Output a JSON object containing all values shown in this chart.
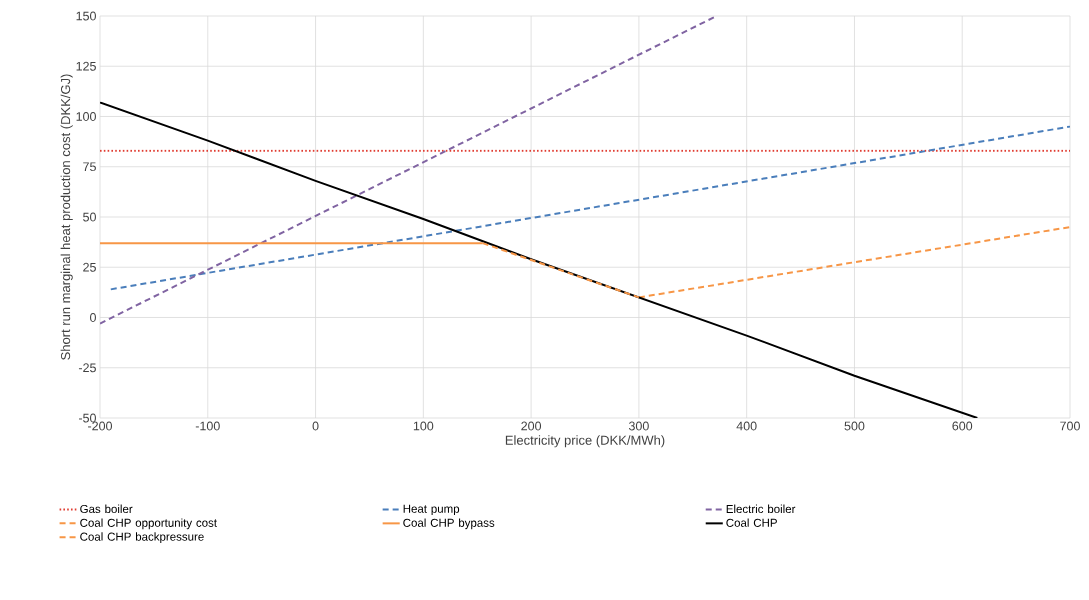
{
  "chart_data": {
    "type": "line",
    "xlabel": "Electricity price (DKK/MWh)",
    "ylabel": "Short run marginal heat production cost (DKK/GJ)",
    "xlim": [
      -200,
      700
    ],
    "ylim": [
      -50,
      150
    ],
    "xticks": [
      -200,
      -100,
      0,
      100,
      200,
      300,
      400,
      500,
      600,
      700
    ],
    "yticks": [
      -50,
      -25,
      0,
      25,
      50,
      75,
      100,
      125,
      150
    ],
    "grid": true,
    "legend": "bottom",
    "marker": "none",
    "series": [
      {
        "name": "Gas boiler",
        "color": "#e03c31",
        "line_style": "dotted",
        "x": [
          -200,
          700
        ],
        "values": [
          83,
          83
        ]
      },
      {
        "name": "Heat pump",
        "color": "#4a7ebb",
        "line_style": "dashed",
        "x": [
          -190,
          700
        ],
        "values": [
          14,
          95
        ]
      },
      {
        "name": "Electric boiler",
        "color": "#8064a2",
        "line_style": "dashed",
        "x": [
          -200,
          372
        ],
        "values": [
          -3,
          150
        ]
      },
      {
        "name": "Coal CHP opportunity cost",
        "color": "#f79646",
        "line_style": "dashed",
        "x": [
          300,
          700
        ],
        "values": [
          10,
          45
        ]
      },
      {
        "name": "Coal CHP bypass",
        "color": "#f79646",
        "line_style": "solid",
        "x": [
          -200,
          155
        ],
        "values": [
          37,
          37
        ]
      },
      {
        "name": "Coal CHP",
        "color": "#000000",
        "line_style": "solid",
        "x": [
          -200,
          -100,
          0,
          100,
          200,
          300,
          400,
          500,
          614
        ],
        "values": [
          107,
          88,
          68,
          49,
          29,
          10,
          -9,
          -29,
          -50
        ]
      },
      {
        "name": "Coal CHP backpressure",
        "color": "#f79646",
        "line_style": "dashed",
        "x": [
          155,
          300
        ],
        "values": [
          37,
          10
        ]
      }
    ]
  }
}
